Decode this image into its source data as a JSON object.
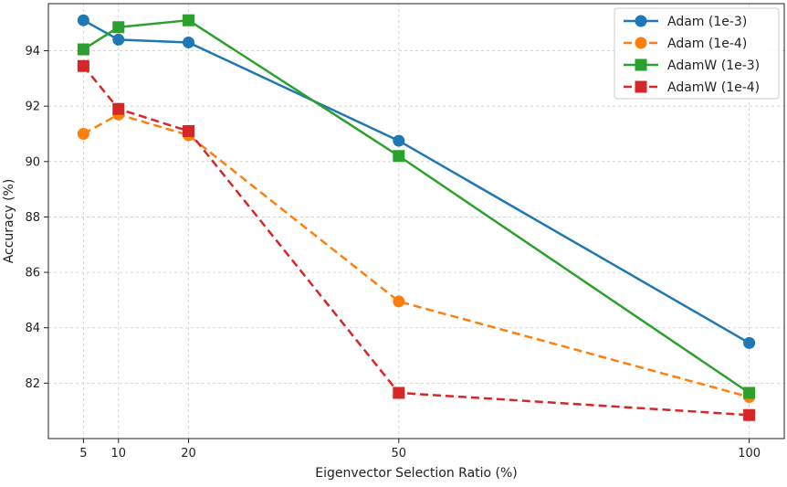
{
  "chart_data": {
    "type": "line",
    "xlabel": "Eigenvector Selection Ratio (%)",
    "ylabel": "Accuracy (%)",
    "x": [
      5,
      10,
      20,
      50,
      100
    ],
    "x_ticks": [
      "5",
      "10",
      "20",
      "50",
      "100"
    ],
    "y_ticks": [
      "82",
      "84",
      "86",
      "88",
      "90",
      "92",
      "94"
    ],
    "xlim": [
      0,
      105
    ],
    "ylim": [
      80.0,
      95.7
    ],
    "grid": true,
    "legend_position": "top-right",
    "series": [
      {
        "name": "Adam (1e-3)",
        "values": [
          95.1,
          94.4,
          94.3,
          90.75,
          83.45
        ],
        "color": "#1f77b4",
        "style": "solid",
        "marker": "circle"
      },
      {
        "name": "Adam (1e-4)",
        "values": [
          91.0,
          91.7,
          90.95,
          84.95,
          81.5
        ],
        "color": "#ff7f0e",
        "style": "dashed",
        "marker": "circle"
      },
      {
        "name": "AdamW (1e-3)",
        "values": [
          94.05,
          94.85,
          95.1,
          90.2,
          81.65
        ],
        "color": "#2ca02c",
        "style": "solid",
        "marker": "square"
      },
      {
        "name": "AdamW (1e-4)",
        "values": [
          93.45,
          91.9,
          91.1,
          81.65,
          80.85
        ],
        "color": "#d62728",
        "style": "dashed",
        "marker": "square"
      }
    ]
  }
}
